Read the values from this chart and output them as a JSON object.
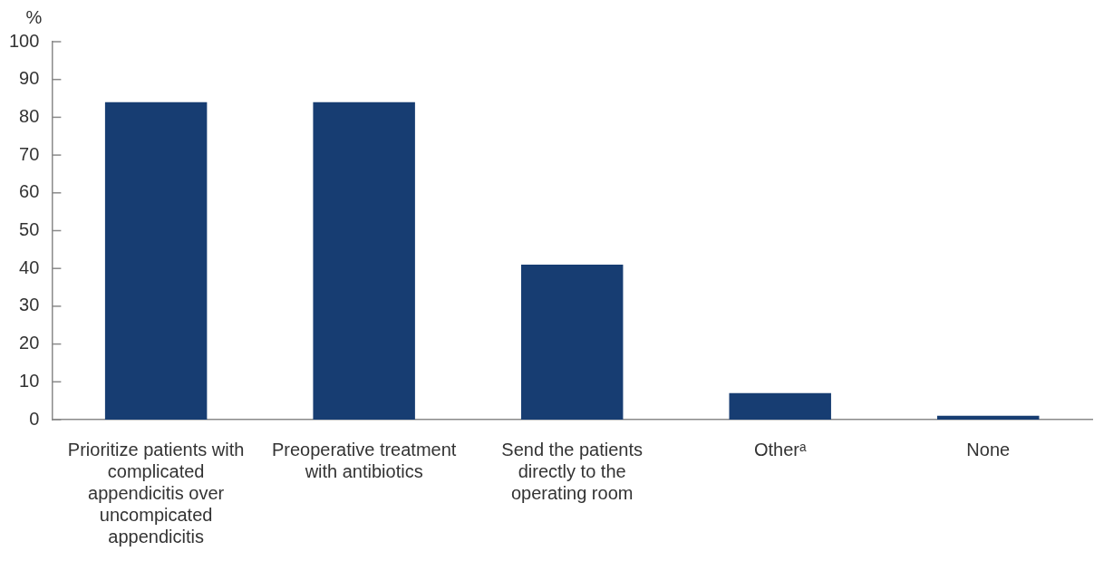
{
  "chart_data": {
    "type": "bar",
    "ylabel": "%",
    "categories": [
      "Prioritize patients with complicated appendicitis over uncompicated appendicitis",
      "Preoperative treatment with antibiotics",
      "Send the patients directly to the operating room",
      "Otherᵃ",
      "None"
    ],
    "values": [
      84,
      84,
      41,
      7,
      1
    ],
    "color": "#173d72",
    "ylim": [
      0,
      100
    ],
    "yticks": [
      0,
      10,
      20,
      30,
      40,
      50,
      60,
      70,
      80,
      90,
      100
    ]
  }
}
